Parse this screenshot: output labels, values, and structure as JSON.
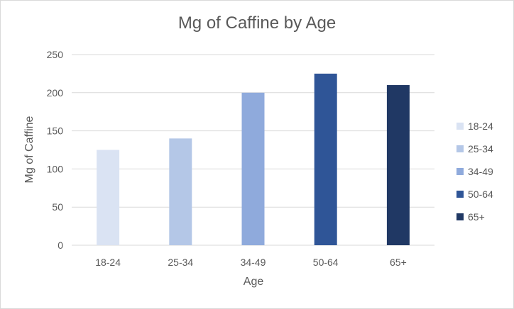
{
  "chart_data": {
    "type": "bar",
    "title": "Mg of Caffine by Age",
    "xlabel": "Age",
    "ylabel": "Mg of Caffine",
    "categories": [
      "18-24",
      "25-34",
      "34-49",
      "50-64",
      "65+"
    ],
    "values": [
      125,
      140,
      200,
      225,
      210
    ],
    "colors": [
      "#dae3f3",
      "#b4c7e7",
      "#8faadc",
      "#2f5597",
      "#203864"
    ],
    "ylim": [
      0,
      250
    ],
    "yticks": [
      0,
      50,
      100,
      150,
      200,
      250
    ],
    "grid": true,
    "legend_position": "right",
    "legend": [
      "18-24",
      "25-34",
      "34-49",
      "50-64",
      "65+"
    ]
  }
}
